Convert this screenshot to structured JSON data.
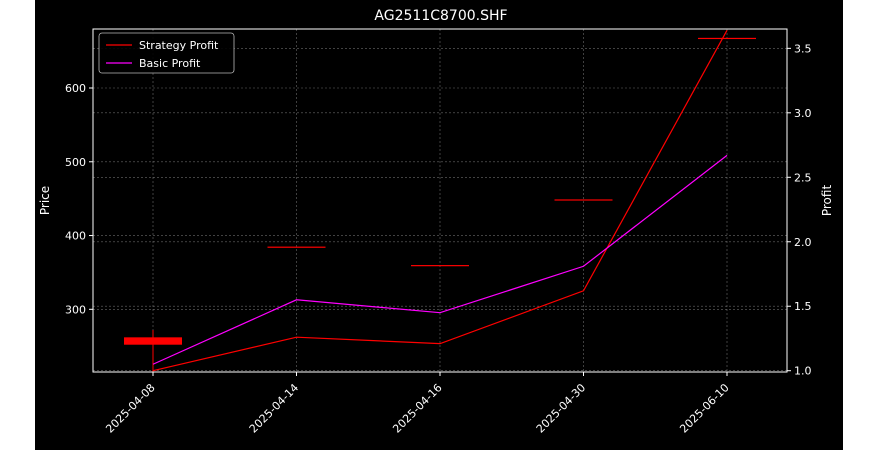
{
  "chart_data": {
    "type": "line",
    "title": "AG2511C8700.SHF",
    "xlabel": "",
    "ylabel_left": "Price",
    "ylabel_right": "Profit",
    "categories": [
      "2025-04-08",
      "2025-04-14",
      "2025-04-16",
      "2025-04-30",
      "2025-06-10"
    ],
    "left_axis": {
      "ylim": [
        215,
        680
      ],
      "ticks": [
        300,
        400,
        500,
        600
      ]
    },
    "right_axis": {
      "ylim": [
        0.99,
        3.65
      ],
      "ticks": [
        1.0,
        1.5,
        2.0,
        2.5,
        3.0,
        3.5
      ]
    },
    "grid": true,
    "legend_position": "upper-left",
    "candles": [
      {
        "x": "2025-04-08",
        "open": 262,
        "close": 252,
        "high": 272,
        "low": 213
      },
      {
        "x": "2025-04-14",
        "open": 385,
        "close": 385
      },
      {
        "x": "2025-04-16",
        "open": 360,
        "close": 360
      },
      {
        "x": "2025-04-30",
        "open": 449,
        "close": 449
      },
      {
        "x": "2025-06-10",
        "open": 668,
        "close": 668
      }
    ],
    "series": [
      {
        "name": "Strategy Profit",
        "color": "#ff0000",
        "axis": "right",
        "values": [
          1.0,
          1.26,
          1.21,
          1.62,
          3.64
        ]
      },
      {
        "name": "Basic Profit",
        "color": "#ff00ff",
        "axis": "right",
        "values": [
          1.05,
          1.55,
          1.45,
          1.81,
          2.67
        ]
      }
    ],
    "candle_color": "#ff0000"
  }
}
